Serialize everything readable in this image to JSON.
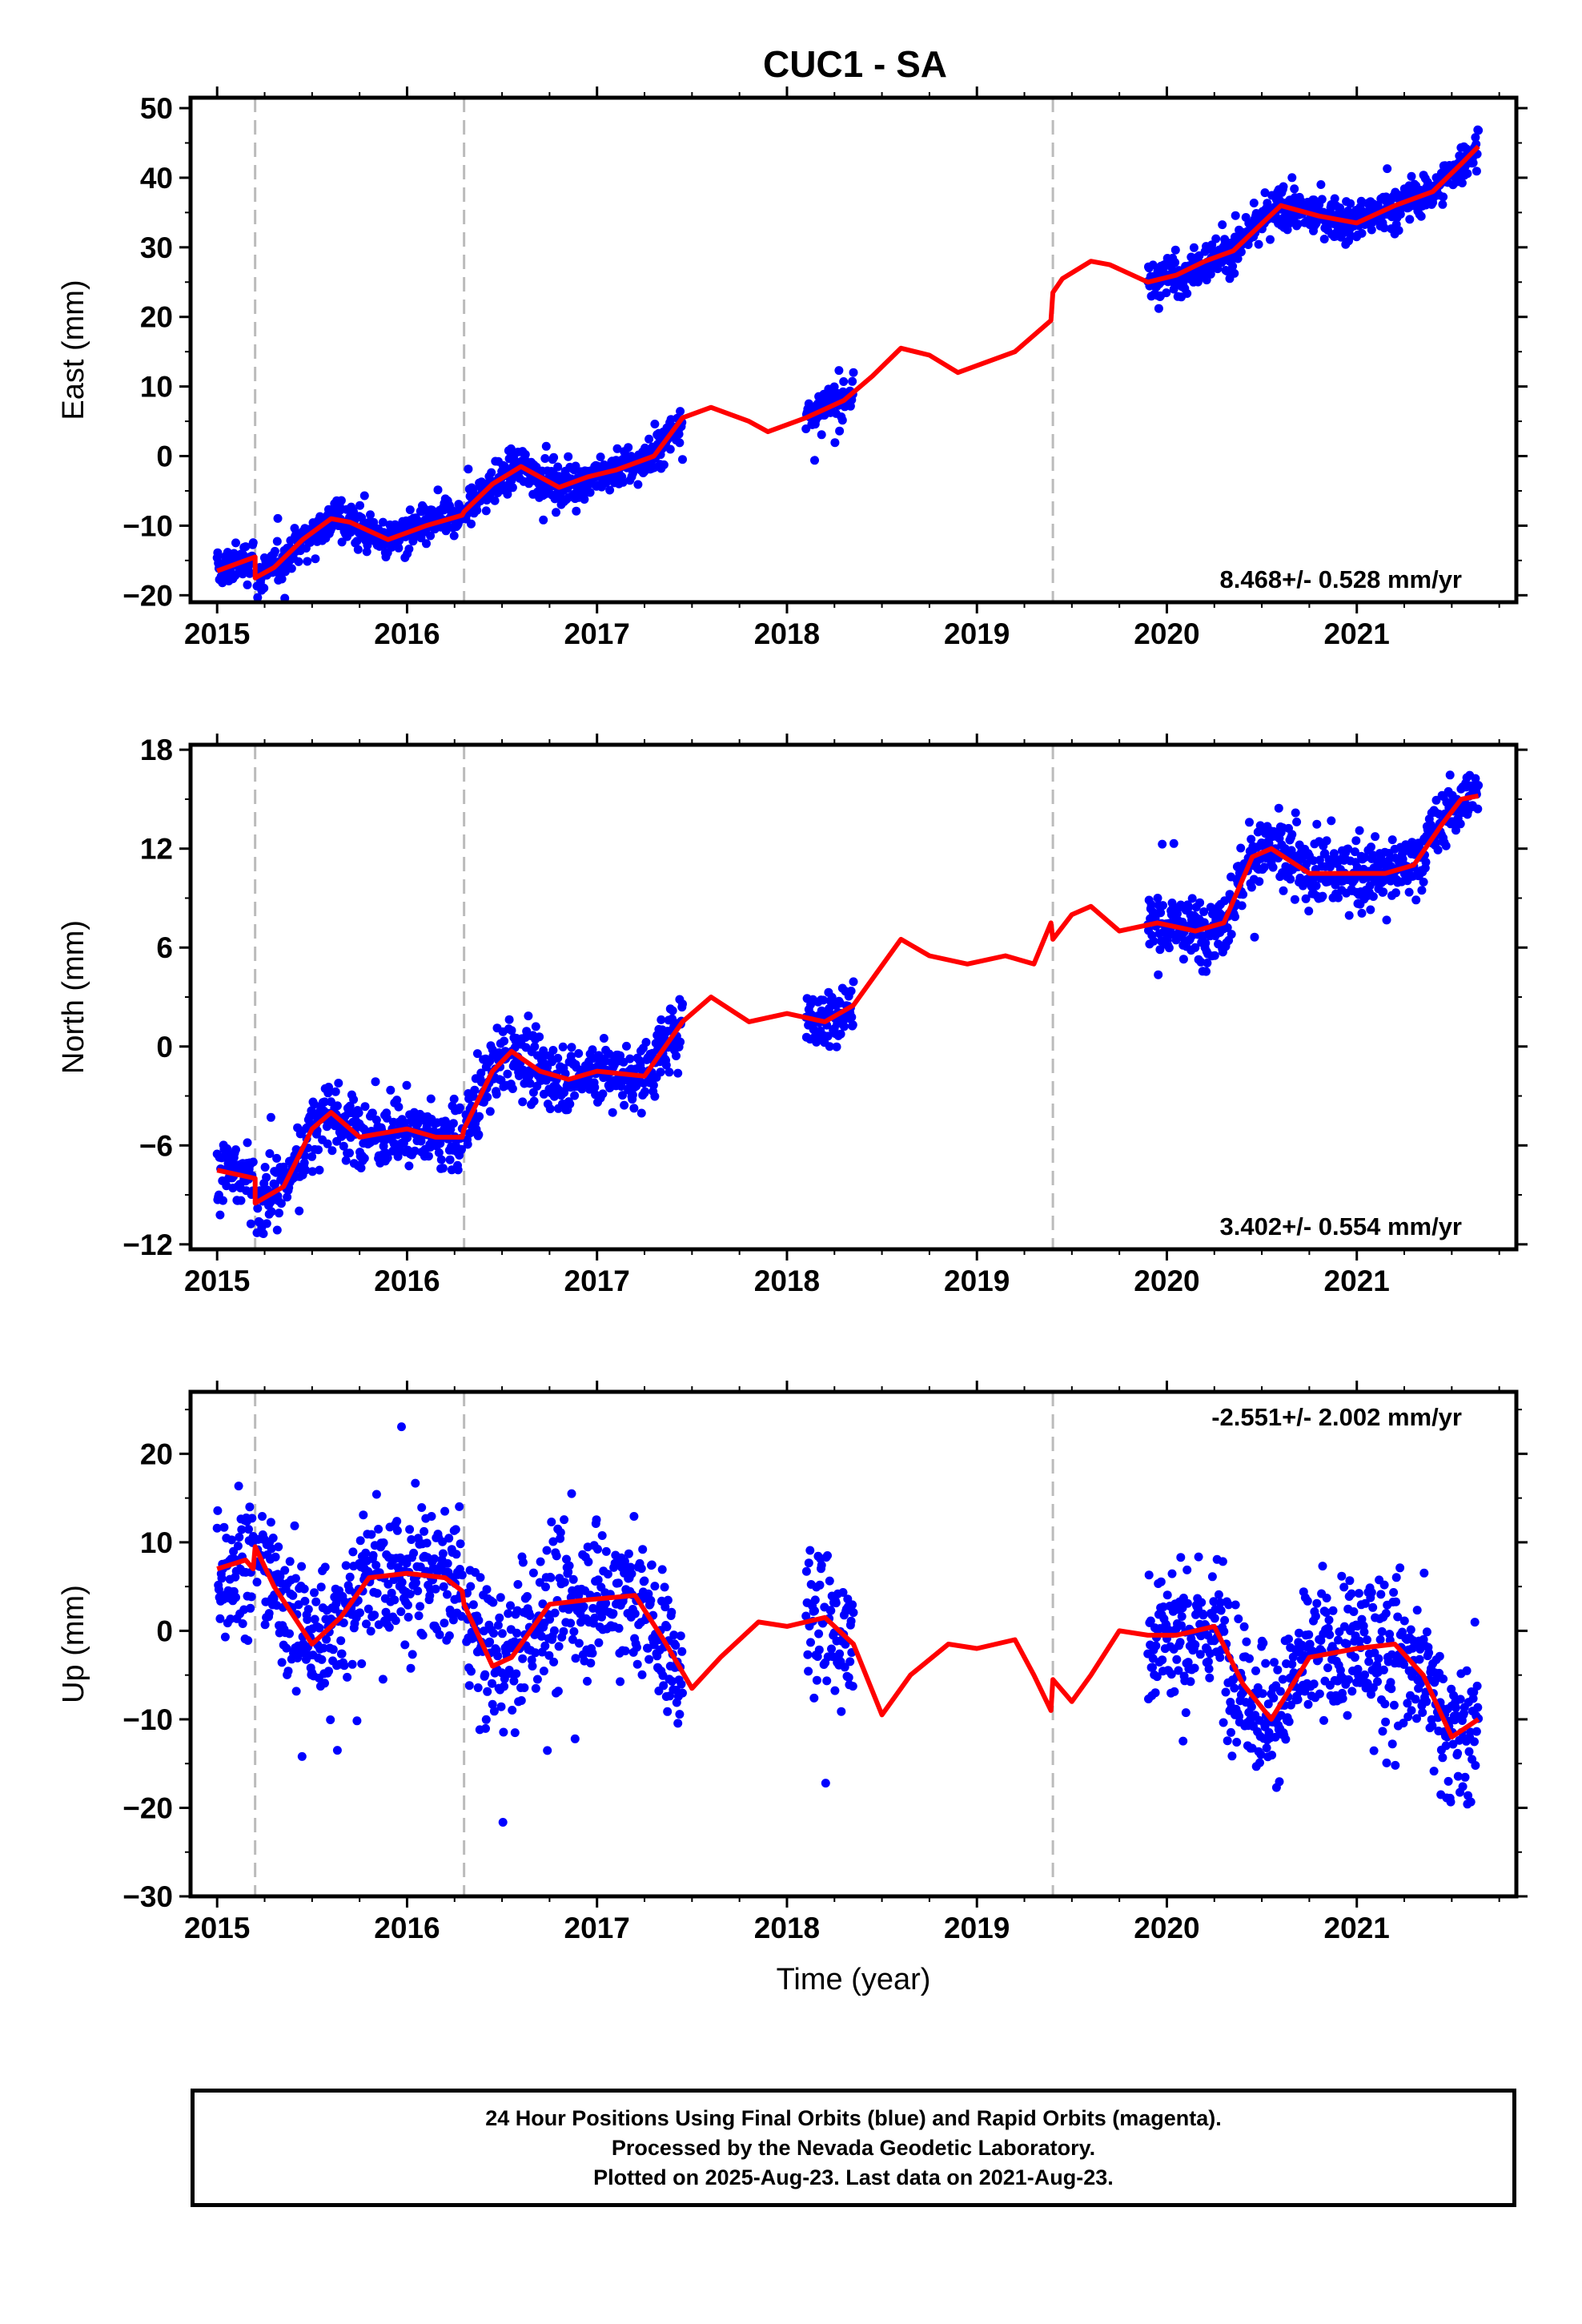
{
  "figure_title": "CUC1 - SA",
  "footer": {
    "lines": [
      "24 Hour Positions Using Final Orbits (blue) and Rapid Orbits (magenta).",
      "Processed by the Nevada Geodetic Laboratory.",
      "Plotted on 2025-Aug-23. Last data on 2021-Aug-23."
    ]
  },
  "colors": {
    "points": "#0000ff",
    "model": "#ff0000",
    "break_lines": "#bbbbbb",
    "axes": "#000000"
  },
  "chart_data": [
    {
      "type": "scatter",
      "component": "East",
      "ylabel": "East (mm)",
      "xlabel": "",
      "xlim": [
        2014.86,
        2021.84
      ],
      "ylim": [
        -21,
        51.5
      ],
      "x_ticks": [
        2015,
        2016,
        2017,
        2018,
        2019,
        2020,
        2021
      ],
      "x_tick_labels": [
        "2015",
        "2016",
        "2017",
        "2018",
        "2019",
        "2020",
        "2021"
      ],
      "y_ticks": [
        -20,
        -10,
        0,
        10,
        20,
        30,
        40,
        50
      ],
      "y_tick_labels": [
        "−20",
        "−10",
        "0",
        "10",
        "20",
        "30",
        "40",
        "50"
      ],
      "rate_label": "8.468+/- 0.528 mm/yr",
      "rate_position": "bottom-right",
      "break_years": [
        2015.2,
        2016.3,
        2019.4
      ],
      "data_segments": [
        [
          2015.0,
          2015.19
        ],
        [
          2015.21,
          2016.29
        ],
        [
          2016.31,
          2017.45
        ],
        [
          2018.1,
          2018.35
        ],
        [
          2019.9,
          2021.64
        ]
      ],
      "model_curve": {
        "x": [
          2015.0,
          2015.2,
          2015.2,
          2015.3,
          2015.45,
          2015.6,
          2015.7,
          2015.9,
          2016.1,
          2016.29,
          2016.3,
          2016.45,
          2016.6,
          2016.8,
          2016.95,
          2017.1,
          2017.3,
          2017.45,
          2017.6,
          2017.8,
          2017.9,
          2018.1,
          2018.3,
          2018.45,
          2018.6,
          2018.75,
          2018.9,
          2019.05,
          2019.2,
          2019.39,
          2019.4,
          2019.45,
          2019.6,
          2019.7,
          2019.9,
          2020.05,
          2020.2,
          2020.35,
          2020.6,
          2020.8,
          2021.0,
          2021.2,
          2021.4,
          2021.55,
          2021.64
        ],
        "y": [
          -16.5,
          -14.5,
          -17.5,
          -16,
          -12,
          -9,
          -9.5,
          -12,
          -10,
          -8.5,
          -8,
          -4,
          -1.5,
          -4.5,
          -3,
          -2,
          0,
          5.5,
          7,
          5,
          3.5,
          5.5,
          8,
          11.5,
          15.5,
          14.5,
          12,
          13.5,
          15,
          19.5,
          23.5,
          25.5,
          28,
          27.5,
          25,
          26,
          28,
          29.5,
          36,
          34.5,
          33.5,
          36,
          38,
          42,
          44.5
        ]
      },
      "points_summary": {
        "model": "daily positions scattered around the model curve",
        "scatter_mm": 2.0,
        "approx_count_per_year": 330
      }
    },
    {
      "type": "scatter",
      "component": "North",
      "ylabel": "North (mm)",
      "xlabel": "",
      "xlim": [
        2014.86,
        2021.84
      ],
      "ylim": [
        -12.3,
        18.3
      ],
      "x_ticks": [
        2015,
        2016,
        2017,
        2018,
        2019,
        2020,
        2021
      ],
      "x_tick_labels": [
        "2015",
        "2016",
        "2017",
        "2018",
        "2019",
        "2020",
        "2021"
      ],
      "y_ticks": [
        -12,
        -6,
        0,
        6,
        12,
        18
      ],
      "y_tick_labels": [
        "−12",
        "−6",
        "0",
        "6",
        "12",
        "18"
      ],
      "rate_label": "3.402+/- 0.554 mm/yr",
      "rate_position": "bottom-right",
      "break_years": [
        2015.2,
        2016.3,
        2019.4
      ],
      "data_segments": [
        [
          2015.0,
          2015.19
        ],
        [
          2015.21,
          2016.29
        ],
        [
          2016.31,
          2017.45
        ],
        [
          2018.1,
          2018.35
        ],
        [
          2019.9,
          2021.64
        ]
      ],
      "model_curve": {
        "x": [
          2015.0,
          2015.2,
          2015.2,
          2015.35,
          2015.5,
          2015.6,
          2015.75,
          2016.0,
          2016.15,
          2016.29,
          2016.3,
          2016.45,
          2016.55,
          2016.7,
          2016.85,
          2017.0,
          2017.25,
          2017.45,
          2017.6,
          2017.8,
          2018.0,
          2018.2,
          2018.35,
          2018.6,
          2018.75,
          2018.95,
          2019.15,
          2019.3,
          2019.39,
          2019.4,
          2019.5,
          2019.6,
          2019.75,
          2019.95,
          2020.15,
          2020.3,
          2020.45,
          2020.55,
          2020.75,
          2020.95,
          2021.15,
          2021.3,
          2021.45,
          2021.55,
          2021.64
        ],
        "y": [
          -7.5,
          -8,
          -9.5,
          -8.5,
          -5,
          -4,
          -5.5,
          -5,
          -5.5,
          -5.5,
          -5,
          -1.5,
          -0.3,
          -1.5,
          -2,
          -1.5,
          -1.8,
          1.5,
          3,
          1.5,
          2,
          1.5,
          2.5,
          6.5,
          5.5,
          5,
          5.5,
          5,
          7.5,
          6.5,
          8,
          8.5,
          7,
          7.5,
          7,
          7.5,
          11.5,
          12,
          10.5,
          10.5,
          10.5,
          11,
          13.5,
          15,
          15.2
        ]
      },
      "points_summary": {
        "model": "daily positions scattered around the model curve",
        "scatter_mm": 1.4,
        "approx_count_per_year": 330
      }
    },
    {
      "type": "scatter",
      "component": "Up",
      "ylabel": "Up (mm)",
      "xlabel": "Time (year)",
      "xlim": [
        2014.86,
        2021.84
      ],
      "ylim": [
        -30,
        27
      ],
      "x_ticks": [
        2015,
        2016,
        2017,
        2018,
        2019,
        2020,
        2021
      ],
      "x_tick_labels": [
        "2015",
        "2016",
        "2017",
        "2018",
        "2019",
        "2020",
        "2021"
      ],
      "y_ticks": [
        -30,
        -20,
        -10,
        0,
        10,
        20
      ],
      "y_tick_labels": [
        "−30",
        "−20",
        "−10",
        "0",
        "10",
        "20"
      ],
      "rate_label": "-2.551+/- 2.002 mm/yr",
      "rate_position": "top-right",
      "break_years": [
        2015.2,
        2016.3,
        2019.4
      ],
      "data_segments": [
        [
          2015.0,
          2015.19
        ],
        [
          2015.21,
          2016.29
        ],
        [
          2016.31,
          2017.45
        ],
        [
          2018.1,
          2018.35
        ],
        [
          2019.9,
          2021.64
        ]
      ],
      "model_curve": {
        "x": [
          2015.0,
          2015.15,
          2015.19,
          2015.2,
          2015.3,
          2015.5,
          2015.65,
          2015.8,
          2016.0,
          2016.2,
          2016.29,
          2016.3,
          2016.45,
          2016.55,
          2016.75,
          2016.95,
          2017.2,
          2017.35,
          2017.5,
          2017.65,
          2017.85,
          2018.0,
          2018.2,
          2018.35,
          2018.5,
          2018.65,
          2018.85,
          2019.0,
          2019.2,
          2019.3,
          2019.39,
          2019.4,
          2019.5,
          2019.6,
          2019.75,
          2019.9,
          2020.05,
          2020.25,
          2020.4,
          2020.55,
          2020.75,
          2021.0,
          2021.2,
          2021.35,
          2021.5,
          2021.64
        ],
        "y": [
          7,
          8,
          7,
          9.5,
          5,
          -1.5,
          1.5,
          6,
          6.5,
          6,
          4.5,
          3,
          -4,
          -3,
          3,
          3.5,
          4,
          -1,
          -6.5,
          -3,
          1,
          0.5,
          1.5,
          -1.5,
          -9.5,
          -5,
          -1.5,
          -2,
          -1,
          -5,
          -9,
          -5.5,
          -8,
          -5,
          0,
          -0.5,
          -0.5,
          0.5,
          -6,
          -10,
          -3,
          -2,
          -1.5,
          -5,
          -12,
          -10
        ]
      },
      "points_summary": {
        "model": "daily positions scattered around the model curve",
        "scatter_mm": 5.5,
        "approx_count_per_year": 330
      }
    }
  ]
}
